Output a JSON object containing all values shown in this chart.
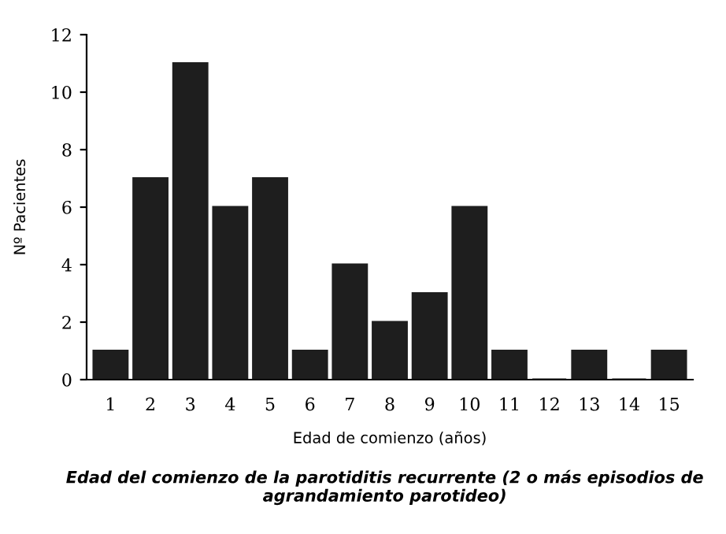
{
  "chart_data": {
    "type": "bar",
    "xlabel": "Edad de comienzo (años)",
    "ylabel": "Nº Pacientes",
    "categories": [
      "1",
      "2",
      "3",
      "4",
      "5",
      "6",
      "7",
      "8",
      "9",
      "10",
      "11",
      "12",
      "13",
      "14",
      "15"
    ],
    "values": [
      1,
      7,
      11,
      6,
      7,
      1,
      4,
      2,
      3,
      6,
      1,
      0,
      1,
      0,
      1
    ],
    "color": "#1e1e1e",
    "ylim": [
      0,
      12
    ],
    "yticks": [
      0,
      2,
      4,
      6,
      8,
      10,
      12
    ],
    "grid": false,
    "legend": false,
    "annotations": [
      "Edad del comienzo de la parotiditis recurrente (2 o más episodios de agrandamiento parotideo)"
    ]
  }
}
